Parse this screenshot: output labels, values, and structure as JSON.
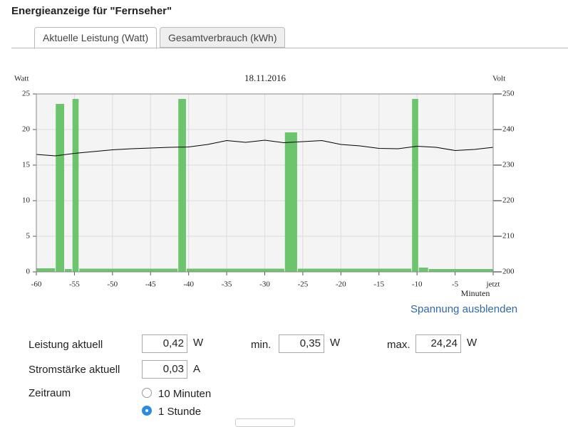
{
  "header": {
    "title": "Energieanzeige für \"Fernseher\""
  },
  "tabs": [
    {
      "label": "Aktuelle Leistung (Watt)",
      "active": true
    },
    {
      "label": "Gesamtverbrauch (kWh)",
      "active": false
    }
  ],
  "chart": {
    "type": "bar",
    "title": "18.11.2016",
    "ylabel": "Watt",
    "y2label": "Volt",
    "xlabel": "Minuten",
    "bins": [
      -60,
      -57.5,
      -56.3,
      -55.3,
      -54.4,
      -41.4,
      -40.3,
      -27.4,
      -25.7,
      -10.7,
      -9.8,
      -8.5,
      0
    ],
    "values": [
      0.5,
      23.6,
      0.4,
      24.3,
      0.45,
      24.3,
      0.45,
      19.6,
      0.45,
      24.3,
      0.6,
      0.4
    ],
    "color": "#6cc46c",
    "voltage": {
      "x": [
        -60,
        -57.5,
        -55,
        -52.5,
        -50,
        -47.5,
        -45,
        -42.5,
        -40,
        -37.5,
        -35,
        -32.5,
        -30,
        -27.5,
        -25,
        -22.5,
        -20,
        -17.5,
        -15,
        -12.5,
        -10,
        -7.5,
        -5,
        -2.5,
        0
      ],
      "values": [
        233,
        232.6,
        233.3,
        233.8,
        234.3,
        234.6,
        234.8,
        235,
        235.1,
        235.8,
        236.9,
        236.4,
        237,
        236.3,
        236.6,
        236.9,
        235.8,
        235.4,
        234.7,
        234.6,
        235.3,
        235,
        234.1,
        234.4,
        235
      ],
      "color": "#000000",
      "axis": "y2"
    },
    "xlim": [
      -60,
      0
    ],
    "xticks": [
      -60,
      -55,
      -50,
      -45,
      -40,
      -35,
      -30,
      -25,
      -20,
      -15,
      -10,
      -5,
      {
        "value": 0,
        "label": "jetzt"
      }
    ],
    "ylim": [
      0,
      25
    ],
    "yticks": [
      0,
      5,
      10,
      15,
      20,
      25
    ],
    "y2lim": [
      200,
      250
    ],
    "y2ticks": [
      200,
      210,
      220,
      230,
      240,
      250
    ],
    "grid": true
  },
  "toggle_link": "Spannung ausblenden",
  "readings": [
    {
      "label": "Leistung aktuell",
      "value": "0,42",
      "unit": "W"
    },
    {
      "label": "min.",
      "value": "0,35",
      "unit": "W"
    },
    {
      "label": "max.",
      "value": "24,24",
      "unit": "W"
    },
    {
      "label": "Stromstärke aktuell",
      "value": "0,03",
      "unit": "A"
    }
  ],
  "period": {
    "label": "Zeitraum",
    "options": [
      {
        "label": "10 Minuten",
        "selected": false
      },
      {
        "label": "1 Stunde",
        "selected": true
      }
    ]
  }
}
